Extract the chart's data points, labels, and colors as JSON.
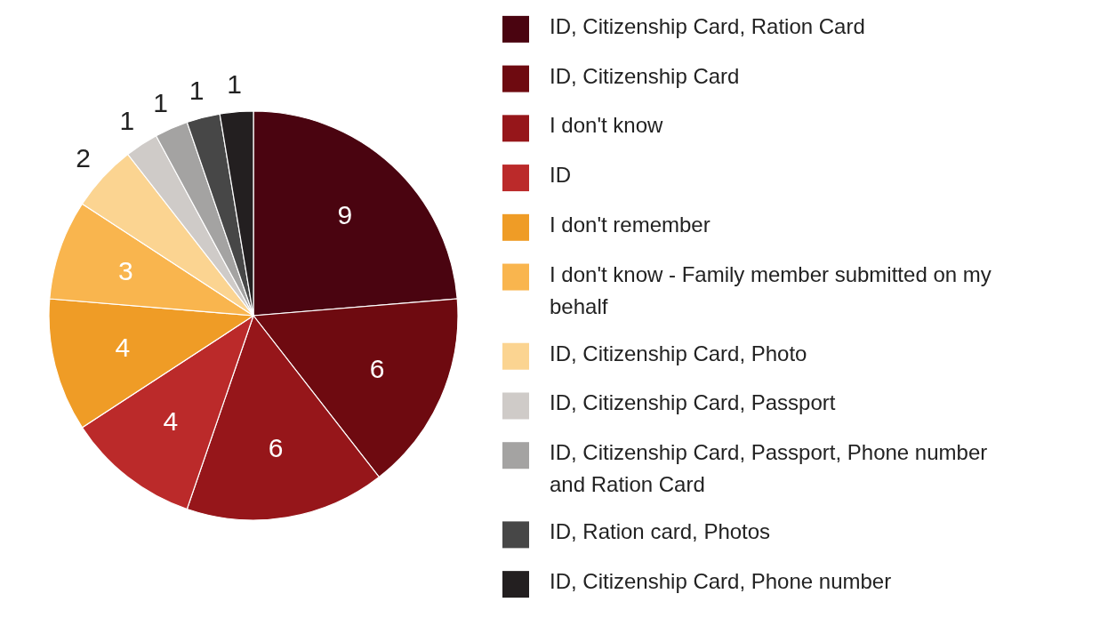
{
  "chart_data": {
    "type": "pie",
    "categories": [
      "ID, Citizenship Card, Ration Card",
      "ID, Citizenship Card",
      "I don't know",
      "ID",
      "I don't remember",
      "I don't know - Family member submitted on my behalf",
      "ID, Citizenship Card, Photo",
      "ID, Citizenship Card, Passport",
      "ID, Citizenship Card, Passport, Phone number and Ration Card",
      "ID, Ration card, Photos",
      "ID, Citizenship Card, Phone number"
    ],
    "values": [
      9,
      6,
      6,
      4,
      4,
      3,
      2,
      1,
      1,
      1,
      1
    ],
    "colors": [
      "#4a0410",
      "#6e0a10",
      "#96161a",
      "#bb2a2a",
      "#ef9c26",
      "#f9b54e",
      "#fbd491",
      "#cfcbc8",
      "#a4a3a2",
      "#474747",
      "#231f20"
    ],
    "data_labels": true,
    "legend": "right"
  }
}
